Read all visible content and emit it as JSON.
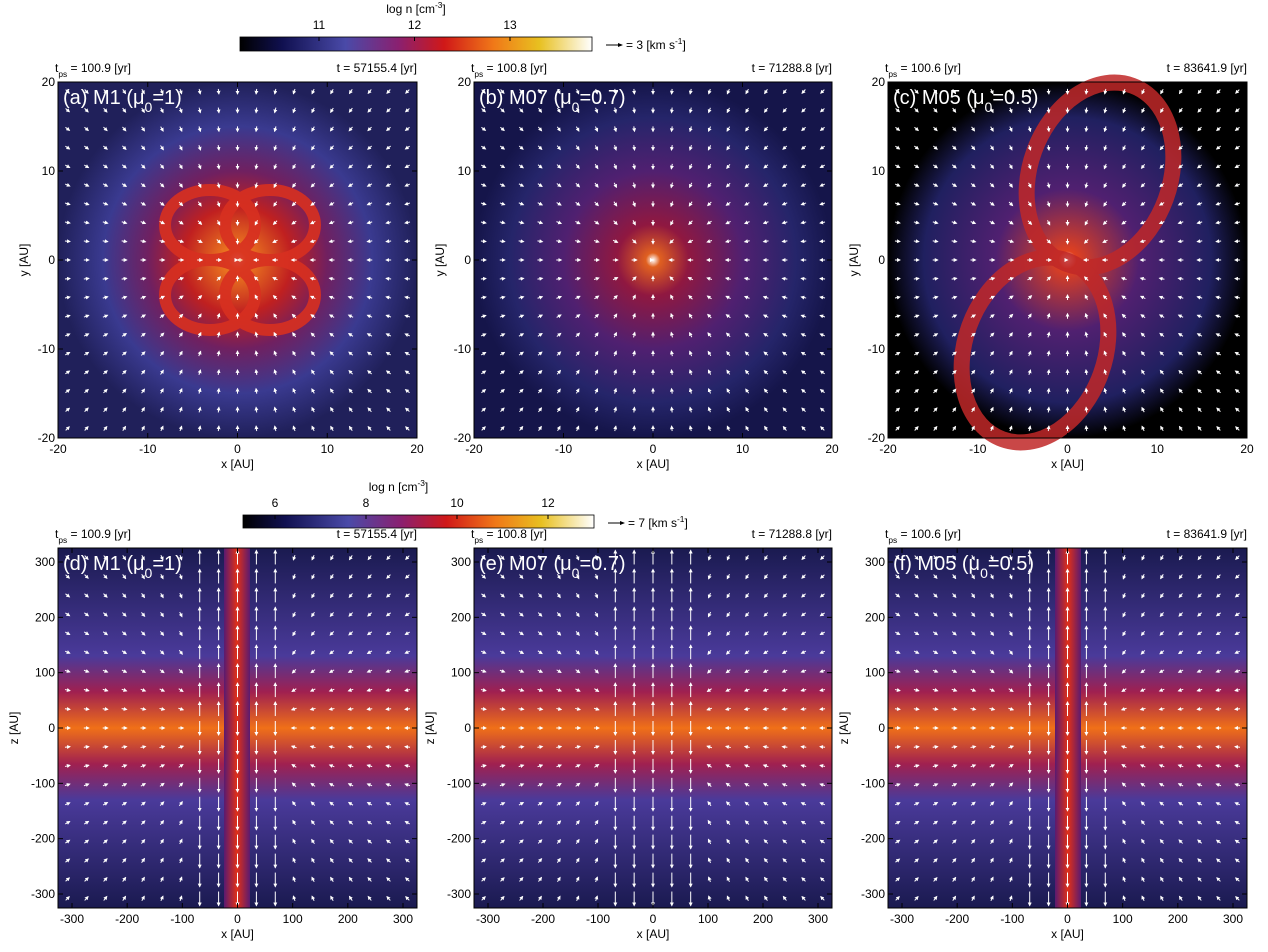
{
  "colorbars": [
    {
      "title": {
        "main": "log n [cm",
        "sup": "-3",
        "end": "]"
      },
      "ticks": [
        "11",
        "12",
        "13"
      ],
      "legend": {
        "main": "= 3 [km s",
        "sup": "-1",
        "end": "]"
      }
    },
    {
      "title": {
        "main": "log n [cm",
        "sup": "-3",
        "end": "]"
      },
      "ticks": [
        "6",
        "8",
        "10",
        "12"
      ],
      "legend": {
        "main": "= 7 [km s",
        "sup": "-1",
        "end": "]"
      }
    }
  ],
  "panels": [
    {
      "tps": {
        "base": "t",
        "sub": "ps",
        "rest": " = 100.9 [yr]"
      },
      "time": "t = 57155.4 [yr]",
      "label": {
        "pre": "(a) M1 (μ",
        "sub": "0",
        "post": "=1)"
      },
      "xticks": [
        "-20",
        "-10",
        "0",
        "10",
        "20"
      ],
      "yticks": [
        "20",
        "10",
        "0",
        "-10",
        "-20"
      ],
      "xlabel": "x [AU]",
      "ylabel": "y [AU]"
    },
    {
      "tps": {
        "base": "t",
        "sub": "ps",
        "rest": " = 100.8 [yr]"
      },
      "time": "t = 71288.8 [yr]",
      "label": {
        "pre": "(b) M07 (μ",
        "sub": "0",
        "post": "=0.7)"
      },
      "xticks": [
        "-20",
        "-10",
        "0",
        "10",
        "20"
      ],
      "yticks": [
        "20",
        "10",
        "0",
        "-10",
        "-20"
      ],
      "xlabel": "x [AU]",
      "ylabel": "y [AU]"
    },
    {
      "tps": {
        "base": "t",
        "sub": "ps",
        "rest": " = 100.6 [yr]"
      },
      "time": "t = 83641.9 [yr]",
      "label": {
        "pre": "(c) M05 (μ",
        "sub": "0",
        "post": "=0.5)"
      },
      "xticks": [
        "-20",
        "-10",
        "0",
        "10",
        "20"
      ],
      "yticks": [
        "20",
        "10",
        "0",
        "-10",
        "-20"
      ],
      "xlabel": "x [AU]",
      "ylabel": "y [AU]"
    },
    {
      "tps": {
        "base": "t",
        "sub": "ps",
        "rest": " = 100.9 [yr]"
      },
      "time": "t = 57155.4 [yr]",
      "label": {
        "pre": "(d) M1 (μ",
        "sub": "0",
        "post": "=1)"
      },
      "xticks": [
        "-300",
        "-200",
        "-100",
        "0",
        "100",
        "200",
        "300"
      ],
      "yticks": [
        "300",
        "200",
        "100",
        "0",
        "-100",
        "-200",
        "-300"
      ],
      "xlabel": "x [AU]",
      "ylabel": "z [AU]"
    },
    {
      "tps": {
        "base": "t",
        "sub": "ps",
        "rest": " = 100.8 [yr]"
      },
      "time": "t = 71288.8 [yr]",
      "label": {
        "pre": "(e) M07 (μ",
        "sub": "0",
        "post": "=0.7)"
      },
      "xticks": [
        "-300",
        "-200",
        "-100",
        "0",
        "100",
        "200",
        "300"
      ],
      "yticks": [
        "300",
        "200",
        "100",
        "0",
        "-100",
        "-200",
        "-300"
      ],
      "xlabel": "x [AU]",
      "ylabel": "z [AU]"
    },
    {
      "tps": {
        "base": "t",
        "sub": "ps",
        "rest": " = 100.6 [yr]"
      },
      "time": "t = 83641.9 [yr]",
      "label": {
        "pre": "(f) M05 (μ",
        "sub": "0",
        "post": "=0.5)"
      },
      "xticks": [
        "-300",
        "-200",
        "-100",
        "0",
        "100",
        "200",
        "300"
      ],
      "yticks": [
        "300",
        "200",
        "100",
        "0",
        "-100",
        "-200",
        "-300"
      ],
      "xlabel": "x [AU]",
      "ylabel": "z [AU]"
    }
  ]
}
